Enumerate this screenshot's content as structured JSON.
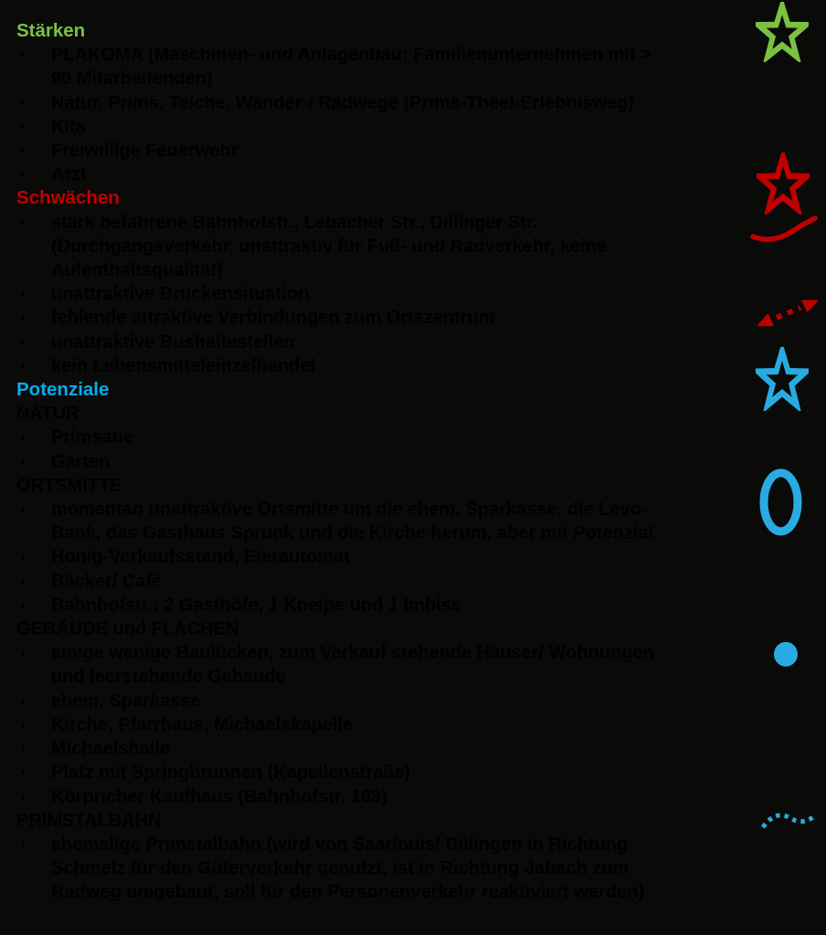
{
  "page": {
    "background": "#0a0a08",
    "body_text_color": "#000000",
    "bullet_char": "•"
  },
  "colors": {
    "green": "#7AC143",
    "red": "#C00000",
    "blue": "#00AEEF",
    "blue_icon": "#29ABE2"
  },
  "sections": [
    {
      "heading": "Stärken",
      "color": "green",
      "blocks": [
        {
          "type": "bullet",
          "text": "PLAKOMA (Maschinen- und Anlagenbau; Familienunternehmen mit >\n90 Mitarbeitenden)"
        },
        {
          "type": "bullet",
          "text": "Natur, Prims, Teiche, Wander-/ Radwege (Prims-Theel-Erlebnisweg)"
        },
        {
          "type": "bullet",
          "text": "Kita"
        },
        {
          "type": "bullet",
          "text": "Freiwillige Feuerwehr"
        },
        {
          "type": "bullet",
          "text": "Arzt"
        }
      ]
    },
    {
      "heading": "Schwächen",
      "color": "red",
      "blocks": [
        {
          "type": "bullet",
          "text": "stark befahrene Bahnhofstr., Lebacher Str., Dillinger Str.\n(Durchgangsverkehr, unattraktiv für Fuß- und Radverkehr, keine\nAufenthaltsqualität)"
        },
        {
          "type": "bullet",
          "text": "unattraktive Brückensituation"
        },
        {
          "type": "bullet",
          "text": "fehlende attraktive Verbindungen zum Ortszentrum"
        },
        {
          "type": "bullet",
          "text": "unattraktive Bushaltestellen"
        },
        {
          "type": "bullet",
          "text": "kein Lebensmitteleinzelhandel"
        }
      ]
    },
    {
      "heading": "Potenziale",
      "color": "blue",
      "blocks": [
        {
          "type": "subheading",
          "text": "NATUR"
        },
        {
          "type": "bullet",
          "text": "Primsaue"
        },
        {
          "type": "bullet",
          "text": "Gärten"
        },
        {
          "type": "subheading",
          "text": "ORTSMITTE"
        },
        {
          "type": "bullet",
          "text": "momentan unattraktive Ortsmitte um die ehem. Sparkasse, die Levo-\nBank, das Gasthaus Sprunk und die Kirche herum, aber mit Potenzial"
        },
        {
          "type": "bullet",
          "text": "Honig-Verkaufsstand, Eierautomat"
        },
        {
          "type": "bullet",
          "text": "Bäcker/ Café"
        },
        {
          "type": "bullet",
          "text": "Bahnhofstr.: 2 Gasthöfe, 1 Kneipe und 1 Imbiss"
        },
        {
          "type": "subheading",
          "text": "GEBÄUDE und FLÄCHEN"
        },
        {
          "type": "bullet",
          "text": "einige wenige Baulücken, zum Verkauf stehende Häuser/ Wohnungen\nund leerstehende Gebäude"
        },
        {
          "type": "bullet",
          "text": "ehem. Sparkasse"
        },
        {
          "type": "bullet",
          "text": "Kirche, Pfarrhaus, Michaelskapelle"
        },
        {
          "type": "bullet",
          "text": "Michaelshalle"
        },
        {
          "type": "bullet",
          "text": "Platz mit Springbrunnen (Kapellenstraße)"
        },
        {
          "type": "bullet",
          "text": "Körpricher Kaufhaus (Bahnhofstr. 103)"
        },
        {
          "type": "subheading",
          "text": "PRIMSTALBAHN"
        },
        {
          "type": "bullet",
          "text": "ehemalige Primstalbahn (wird von Saarlouis/ Dillingen in Richtung\nSchmelz für den Güterverkehr genutzt, ist in Richtung Jabach zum\nRadweg umgebaut, soll für den Personenverkehr reaktiviert werden)"
        }
      ]
    }
  ],
  "legend_icons": [
    {
      "name": "green-star-icon",
      "color": "#7AC143"
    },
    {
      "name": "red-star-icon",
      "color": "#C00000"
    },
    {
      "name": "red-wavy-line-icon",
      "color": "#C00000"
    },
    {
      "name": "red-dashed-arrow-icon",
      "color": "#C00000"
    },
    {
      "name": "blue-star-icon",
      "color": "#29ABE2"
    },
    {
      "name": "blue-ellipse-icon",
      "color": "#29ABE2"
    },
    {
      "name": "blue-dot-icon",
      "color": "#29ABE2"
    },
    {
      "name": "blue-dashed-wave-icon",
      "color": "#29ABE2"
    }
  ]
}
